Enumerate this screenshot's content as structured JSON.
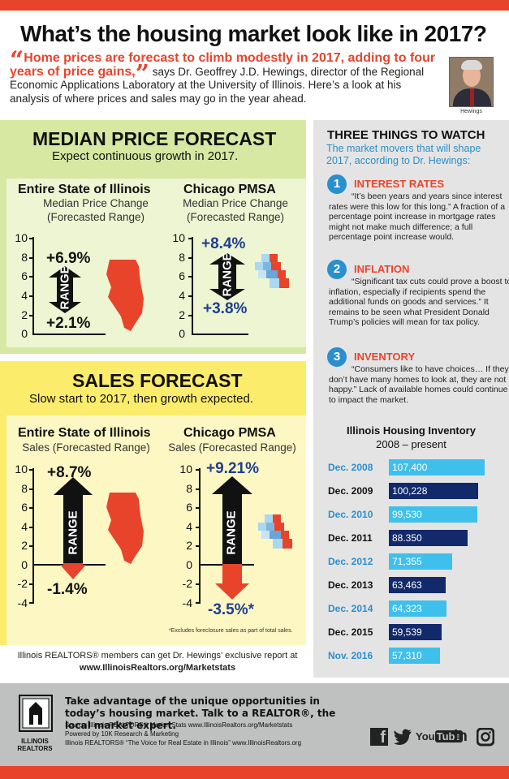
{
  "title": "What’s the housing market look like in 2017?",
  "intro": {
    "quote_open": "“",
    "highlight": "Home prices are forecast to climb modestly in 2017, adding to four years of price gains,",
    "quote_close": "”",
    "rest": " says Dr. Geoffrey J.D. Hewings, director of the Regional Economic Applications Laboratory at the University of Illinois. Here’s a look at his analysis of where prices and sales may go in the year ahead.",
    "photo_caption": "Hewings"
  },
  "price": {
    "title": "MEDIAN PRICE FORECAST",
    "subtitle": "Expect continuous growth in 2017.",
    "state": {
      "title": "Entire State of Illinois",
      "sub1": "Median Price Change",
      "sub2": "(Forecasted Range)",
      "high": "+6.9%",
      "low": "+2.1%",
      "range": "RANGE",
      "high_value": 6.9,
      "low_value": 2.1
    },
    "chicago": {
      "title": "Chicago PMSA",
      "sub1": "Median Price Change",
      "sub2": "(Forecasted Range)",
      "high": "+8.4%",
      "low": "+3.8%",
      "range": "RANGE",
      "high_value": 8.4,
      "low_value": 3.8
    },
    "ticks": [
      "10",
      "8",
      "6",
      "4",
      "2",
      "0"
    ]
  },
  "sales": {
    "title": "SALES FORECAST",
    "subtitle": "Slow start to 2017, then growth expected.",
    "state": {
      "title": "Entire State of Illinois",
      "sub": "Sales (Forecasted Range)",
      "high": "+8.7%",
      "low": "-1.4%",
      "range": "RANGE",
      "high_value": 8.7,
      "low_value": -1.4
    },
    "chicago": {
      "title": "Chicago PMSA",
      "sub": "Sales (Forecasted Range)",
      "high": "+9.21%",
      "low": "-3.5%*",
      "range": "RANGE",
      "high_value": 9.21,
      "low_value": -3.5
    },
    "ticks": [
      "10",
      "8",
      "6",
      "4",
      "2",
      "0",
      "-2",
      "-4"
    ],
    "footnote": "*Excludes foreclosure sales as part of total sales."
  },
  "report": {
    "text": "Illinois REALTORS® members can get Dr. Hewings’ exclusive report at",
    "url": "www.IllinoisRealtors.org/Marketstats"
  },
  "watch": {
    "title": "THREE THINGS TO WATCH",
    "subtitle": "The market movers that will shape 2017, according to Dr. Hewings:",
    "items": [
      {
        "num": "1",
        "title": "INTEREST RATES",
        "text": "“It’s been years and years since interest rates were this low for this long.” A fraction of a percentage point increase in mortgage rates might not make much difference; a full percentage point increase would."
      },
      {
        "num": "2",
        "title": "INFLATION",
        "text": "“Significant tax cuts could prove a boost to inflation, especially if recipients spend the additional funds on goods and services.” It remains to be seen what President Donald Trump’s policies will mean for tax policy."
      },
      {
        "num": "3",
        "title": "INVENTORY",
        "text": "“Consumers like to have choices… If they don’t have many homes to look at, they are not happy.” Lack of available homes could continue to impact the market."
      }
    ]
  },
  "chart_data": {
    "type": "bar",
    "title": "Illinois Housing Inventory",
    "subtitle": "2008 – present",
    "categories": [
      "Dec. 2008",
      "Dec. 2009",
      "Dec. 2010",
      "Dec. 2011",
      "Dec. 2012",
      "Dec. 2013",
      "Dec. 2014",
      "Dec. 2015",
      "Nov. 2016"
    ],
    "values": [
      107400,
      100228,
      99530,
      88350,
      71355,
      63463,
      64323,
      59539,
      57310
    ],
    "labels": [
      "107,400",
      "100,228",
      "99,530",
      "88.350",
      "71,355",
      "63,463",
      "64,323",
      "59,539",
      "57,310"
    ],
    "colors": {
      "light": "#3fc0ec",
      "dark": "#12296b"
    }
  },
  "footer": {
    "main": "Take advantage of the unique opportunities in today’s housing market. Talk to a REALTOR®, the local market expert.",
    "source": "Source: Illinois REALTORS® Market Stats www.IllinoisRealtors.org/Marketstats",
    "powered": "Powered by 10K Research & Marketing",
    "voice": "Illinois REALTORS® “The Voice for Real Estate in Illinois” www.IllinoisRealtors.org",
    "logo_line1": "ILLINOIS",
    "logo_line2": "REALTORS"
  },
  "social": {
    "facebook": "f",
    "youtube_a": "You",
    "youtube_b": "Tube",
    "linkedin": "in"
  },
  "colors": {
    "accent": "#e8442b",
    "blue": "#1d3f8f",
    "watch_blue": "#2a8fcf"
  }
}
